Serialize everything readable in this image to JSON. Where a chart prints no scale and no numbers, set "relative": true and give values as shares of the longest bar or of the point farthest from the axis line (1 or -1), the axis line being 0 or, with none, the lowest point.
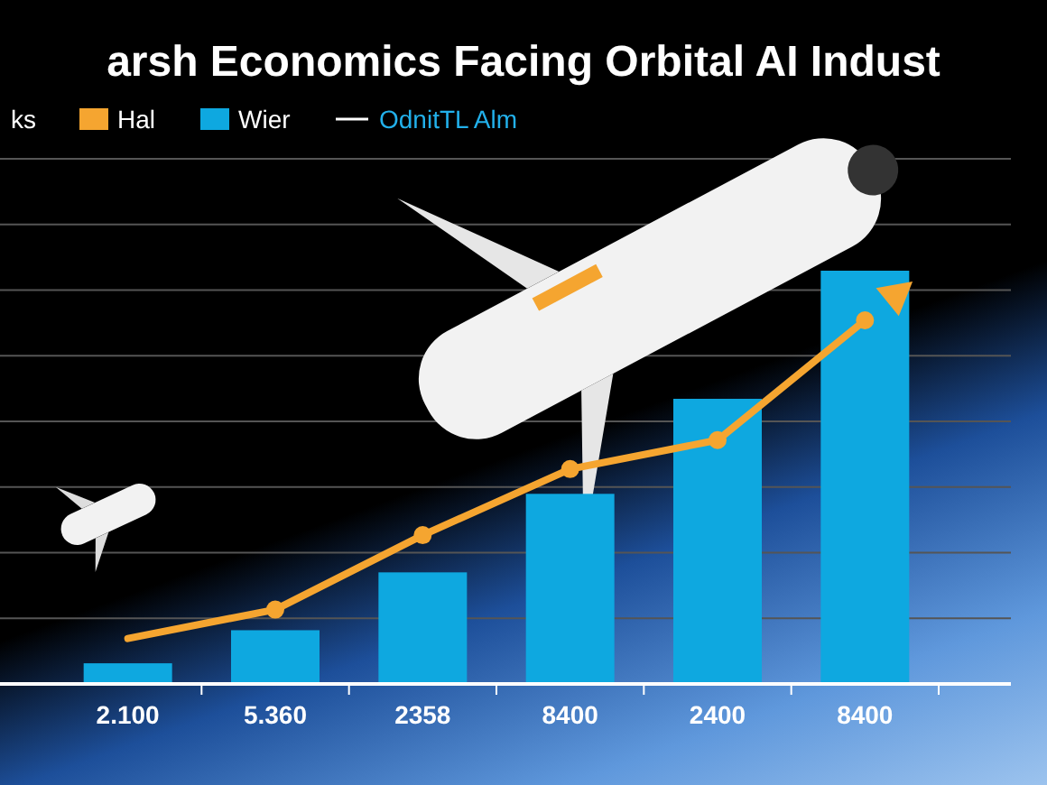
{
  "chart_data": {
    "type": "bar",
    "title": "arsh Economics Facing Orbital AI Indust",
    "relative": true,
    "grid": true,
    "legend": "top left",
    "marker": "circle",
    "categories": [
      "2.100",
      "5.360",
      "2358",
      "8400",
      "2400",
      "8400"
    ],
    "annotations": [
      "ks",
      "OdnitTL Alm"
    ],
    "series": [
      {
        "name": "Wier",
        "color": "#0ea8e0",
        "values": [
          0.05,
          0.13,
          0.27,
          0.46,
          0.69,
          1
        ]
      },
      {
        "name": "Hal",
        "type": "line",
        "color": "#f5a530",
        "values": [
          0.11,
          0.18,
          0.36,
          0.52,
          0.59,
          0.88
        ]
      }
    ]
  }
}
